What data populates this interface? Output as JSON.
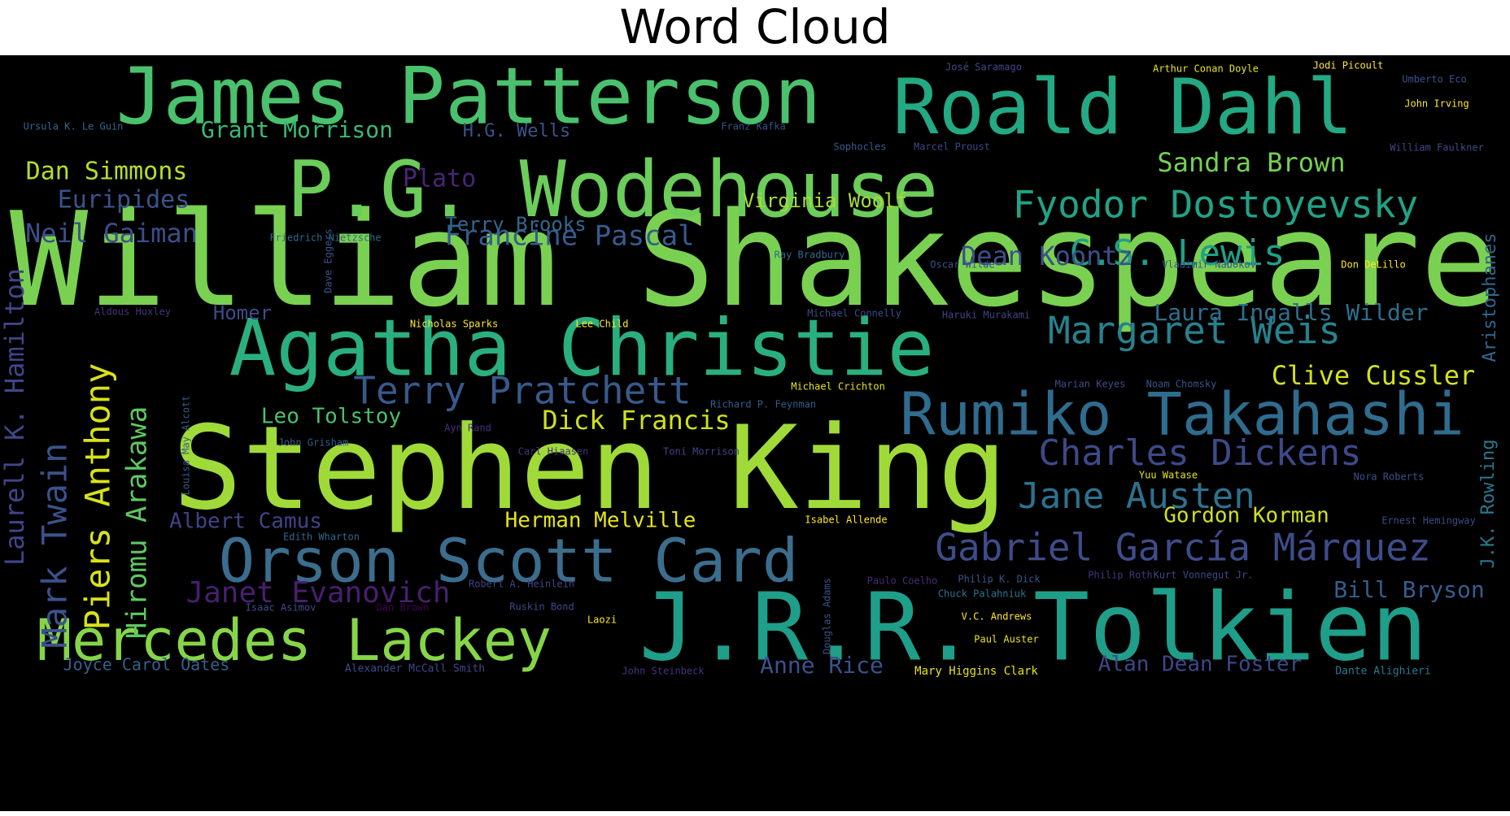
{
  "chart_data": {
    "type": "wordcloud",
    "title": "Word Cloud",
    "background": "#000000",
    "words": [
      {
        "text": "William Shakespeare",
        "weight": 1.0,
        "color": "#7ad151"
      },
      {
        "text": "Stephen King",
        "weight": 0.92,
        "color": "#a0da39"
      },
      {
        "text": "J.R.R. Tolkien",
        "weight": 0.76,
        "color": "#1f9e89"
      },
      {
        "text": "Agatha Christie",
        "weight": 0.74,
        "color": "#2ab07f"
      },
      {
        "text": "P.G. Wodehouse",
        "weight": 0.7,
        "color": "#6ccd5a"
      },
      {
        "text": "James Patterson",
        "weight": 0.64,
        "color": "#4ac16d"
      },
      {
        "text": "Roald Dahl",
        "weight": 0.62,
        "color": "#23a983"
      },
      {
        "text": "Orson Scott Card",
        "weight": 0.5,
        "color": "#3b6d8d"
      },
      {
        "text": "Rumiko Takahashi",
        "weight": 0.5,
        "color": "#2f6c8e"
      },
      {
        "text": "Mercedes Lackey",
        "weight": 0.5,
        "color": "#86d549"
      },
      {
        "text": "Gabriel García Márquez",
        "weight": 0.4,
        "color": "#3e4c8a"
      },
      {
        "text": "Fyodor Dostoyevsky",
        "weight": 0.4,
        "color": "#20a386"
      },
      {
        "text": "Terry Pratchett",
        "weight": 0.4,
        "color": "#38598c"
      },
      {
        "text": "Margaret Weis",
        "weight": 0.4,
        "color": "#26828e"
      },
      {
        "text": "Charles Dickens",
        "weight": 0.4,
        "color": "#3e4989"
      },
      {
        "text": "Jane Austen",
        "weight": 0.4,
        "color": "#2c728e"
      },
      {
        "text": "C.S. Lewis",
        "weight": 0.4,
        "color": "#1fa088"
      },
      {
        "text": "Piers Anthony",
        "weight": 0.4,
        "color": "#d8e219"
      },
      {
        "text": "Mark Twain",
        "weight": 0.4,
        "color": "#3b528b"
      },
      {
        "text": "Laurell K. Hamilton",
        "weight": 0.36,
        "color": "#404688"
      },
      {
        "text": "Hiromu Arakawa",
        "weight": 0.34,
        "color": "#5ec962"
      },
      {
        "text": "Sandra Brown",
        "weight": 0.3,
        "color": "#75d054"
      },
      {
        "text": "Dean Koontz",
        "weight": 0.3,
        "color": "#3d4e8a"
      },
      {
        "text": "Francine Pascal",
        "weight": 0.3,
        "color": "#365c8d"
      },
      {
        "text": "Clive Cussler",
        "weight": 0.3,
        "color": "#d2e21b"
      },
      {
        "text": "Dick Francis",
        "weight": 0.3,
        "color": "#d0e11c"
      },
      {
        "text": "Janet Evanovich",
        "weight": 0.3,
        "color": "#481f70"
      },
      {
        "text": "Laura Ingalls Wilder",
        "weight": 0.22,
        "color": "#2e6f8e"
      },
      {
        "text": "Neil Gaiman",
        "weight": 0.24,
        "color": "#3d4d8a"
      },
      {
        "text": "Euripides",
        "weight": 0.24,
        "color": "#3b528b"
      },
      {
        "text": "Dan Simmons",
        "weight": 0.24,
        "color": "#b5de2b"
      },
      {
        "text": "Grant Morrison",
        "weight": 0.22,
        "color": "#3aba76"
      },
      {
        "text": "Plato",
        "weight": 0.24,
        "color": "#482576"
      },
      {
        "text": "Bill Bryson",
        "weight": 0.22,
        "color": "#365d8d"
      },
      {
        "text": "Alan Dean Foster",
        "weight": 0.22,
        "color": "#3f4788"
      },
      {
        "text": "Anne Rice",
        "weight": 0.22,
        "color": "#3b528b"
      },
      {
        "text": "Leo Tolstoy",
        "weight": 0.2,
        "color": "#4ac16d"
      },
      {
        "text": "Herman Melville",
        "weight": 0.2,
        "color": "#e5e419"
      },
      {
        "text": "Albert Camus",
        "weight": 0.2,
        "color": "#414487"
      },
      {
        "text": "Gordon Korman",
        "weight": 0.2,
        "color": "#d0e11c"
      },
      {
        "text": "Virginia Woolf",
        "weight": 0.2,
        "color": "#a8db34"
      },
      {
        "text": "Terry Brooks",
        "weight": 0.18,
        "color": "#31688e"
      },
      {
        "text": "Homer",
        "weight": 0.18,
        "color": "#3e4a89"
      },
      {
        "text": "H.G. Wells",
        "weight": 0.18,
        "color": "#3b528b"
      },
      {
        "text": "Aristophanes",
        "weight": 0.18,
        "color": "#31678e"
      },
      {
        "text": "J.K. Rowling",
        "weight": 0.18,
        "color": "#2a788e"
      },
      {
        "text": "Joyce Carol Oates",
        "weight": 0.14,
        "color": "#35608d"
      },
      {
        "text": "Mary Higgins Clark",
        "weight": 0.1,
        "color": "#e5e419"
      },
      {
        "text": "Dante Alighieri",
        "weight": 0.08,
        "color": "#2a788e"
      },
      {
        "text": "Alexander McCall Smith",
        "weight": 0.08,
        "color": "#3f4889"
      },
      {
        "text": "John Steinbeck",
        "weight": 0.08,
        "color": "#46327e"
      },
      {
        "text": "Paul Auster",
        "weight": 0.08,
        "color": "#e5e419"
      },
      {
        "text": "V.C. Andrews",
        "weight": 0.08,
        "color": "#fde725"
      },
      {
        "text": "Chuck Palahniuk",
        "weight": 0.08,
        "color": "#2c728e"
      },
      {
        "text": "Philip K. Dick",
        "weight": 0.08,
        "color": "#3b528b"
      },
      {
        "text": "Paulo Coelho",
        "weight": 0.08,
        "color": "#472d7b"
      },
      {
        "text": "Philip Roth",
        "weight": 0.08,
        "color": "#46337f"
      },
      {
        "text": "Kurt Vonnegut Jr.",
        "weight": 0.08,
        "color": "#3e4a89"
      },
      {
        "text": "Robert A. Heinlein",
        "weight": 0.08,
        "color": "#414487"
      },
      {
        "text": "Isaac Asimov",
        "weight": 0.08,
        "color": "#3e4c8a"
      },
      {
        "text": "Dan Brown",
        "weight": 0.08,
        "color": "#440154"
      },
      {
        "text": "Ruskin Bond",
        "weight": 0.08,
        "color": "#3e4a89"
      },
      {
        "text": "Laozi",
        "weight": 0.08,
        "color": "#fde725"
      },
      {
        "text": "Edith Wharton",
        "weight": 0.08,
        "color": "#31688e"
      },
      {
        "text": "Isabel Allende",
        "weight": 0.08,
        "color": "#fde725"
      },
      {
        "text": "Ernest Hemingway",
        "weight": 0.08,
        "color": "#3e4a89"
      },
      {
        "text": "Toni Morrison",
        "weight": 0.08,
        "color": "#414487"
      },
      {
        "text": "Carl Hiaasen",
        "weight": 0.08,
        "color": "#46327e"
      },
      {
        "text": "John Grisham",
        "weight": 0.08,
        "color": "#365c8d"
      },
      {
        "text": "Ayn Rand",
        "weight": 0.08,
        "color": "#46327e"
      },
      {
        "text": "Richard P. Feynman",
        "weight": 0.08,
        "color": "#365c8d"
      },
      {
        "text": "Michael Crichton",
        "weight": 0.08,
        "color": "#e5e419"
      },
      {
        "text": "Marian Keyes",
        "weight": 0.08,
        "color": "#3e4a89"
      },
      {
        "text": "Noam Chomsky",
        "weight": 0.08,
        "color": "#3b528b"
      },
      {
        "text": "Yuu Watase",
        "weight": 0.08,
        "color": "#e5e419"
      },
      {
        "text": "Nora Roberts",
        "weight": 0.08,
        "color": "#3b528b"
      },
      {
        "text": "Michael Connelly",
        "weight": 0.08,
        "color": "#3e4a89"
      },
      {
        "text": "Haruki Murakami",
        "weight": 0.08,
        "color": "#414487"
      },
      {
        "text": "Nicholas Sparks",
        "weight": 0.08,
        "color": "#fde725"
      },
      {
        "text": "Lee Child",
        "weight": 0.08,
        "color": "#fde725"
      },
      {
        "text": "Aldous Huxley",
        "weight": 0.08,
        "color": "#46327e"
      },
      {
        "text": "Friedrich Nietzsche",
        "weight": 0.08,
        "color": "#31688e"
      },
      {
        "text": "Ray Bradbury",
        "weight": 0.08,
        "color": "#31688e"
      },
      {
        "text": "Vladimir Nabokov",
        "weight": 0.08,
        "color": "#3b528b"
      },
      {
        "text": "Don DeLillo",
        "weight": 0.08,
        "color": "#fde725"
      },
      {
        "text": "Oscar Wilde",
        "weight": 0.08,
        "color": "#3b528b"
      },
      {
        "text": "Franz Kafka",
        "weight": 0.08,
        "color": "#3b528b"
      },
      {
        "text": "Sophocles",
        "weight": 0.08,
        "color": "#365c8d"
      },
      {
        "text": "Marcel Proust",
        "weight": 0.08,
        "color": "#3e4a89"
      },
      {
        "text": "Ursula K. Le Guin",
        "weight": 0.08,
        "color": "#31688e"
      },
      {
        "text": "José Saramago",
        "weight": 0.08,
        "color": "#3e4a89"
      },
      {
        "text": "Arthur Conan Doyle",
        "weight": 0.08,
        "color": "#e5e419"
      },
      {
        "text": "Jodi Picoult",
        "weight": 0.08,
        "color": "#fde725"
      },
      {
        "text": "Umberto Eco",
        "weight": 0.08,
        "color": "#3b528b"
      },
      {
        "text": "John Irving",
        "weight": 0.08,
        "color": "#fde725"
      },
      {
        "text": "William Faulkner",
        "weight": 0.08,
        "color": "#3e4a89"
      },
      {
        "text": "Dave Eggers",
        "weight": 0.08,
        "color": "#3b528b"
      },
      {
        "text": "Douglas Adams",
        "weight": 0.08,
        "color": "#3b528b"
      },
      {
        "text": "Louisa May Alcott",
        "weight": 0.08,
        "color": "#365c8d"
      }
    ]
  }
}
